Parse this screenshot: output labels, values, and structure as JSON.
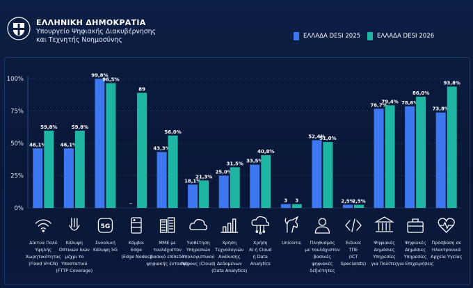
{
  "header": {
    "country": "ΕΛΛΗΝΙΚΗ ΔΗΜΟΚΡΑΤΙΑ",
    "ministry_line1": "Υπουργείο Ψηφιακής Διακυβέρνησης",
    "ministry_line2": "και Τεχνητής Νοημοσύνης"
  },
  "legend": [
    {
      "label": "ΕΛΛΑΔΑ DESI 2025",
      "color": "#3e78f0"
    },
    {
      "label": "ΕΛΛΑΔΑ DESI 2026",
      "color": "#1fb5a3"
    }
  ],
  "chart_data": {
    "type": "bar",
    "ylim": [
      0,
      100
    ],
    "y_ticks": [
      "0%",
      "25%",
      "50%",
      "75%",
      "100%"
    ],
    "grid": true,
    "legend_position": "top-right",
    "categories": [
      {
        "lines": [
          "Δίκτυα Πολύ",
          "Υψηλής",
          "Χωρητικότητας",
          "(Fixed VHCN)"
        ],
        "icon": "wifi-icon"
      },
      {
        "lines": [
          "Κάλυψη",
          "Οπτικών Ινών",
          "μέχρι το",
          "Υποστατικό",
          "(FTTP Coverage)"
        ],
        "icon": "fiber-icon"
      },
      {
        "lines": [
          "Συνολική",
          "Κάλυψη 5G"
        ],
        "icon": "5g-icon"
      },
      {
        "lines": [
          "Κόμβοι",
          "Edge",
          "(Edge Nodes)"
        ],
        "icon": "server-icon"
      },
      {
        "lines": [
          "ΜΜΕ με",
          "τουλάχιστον",
          "βασικό επίπεδο",
          "ψηφιακής έντασης"
        ],
        "icon": "buildings-icon"
      },
      {
        "lines": [
          "Υιοθέτηση",
          "Υπηρεσιών",
          "Υπολογιστικού",
          "Νέφους (Cloud)"
        ],
        "icon": "cloud-icon"
      },
      {
        "lines": [
          "Χρήση",
          "Τεχνολογιών",
          "Ανάλυσης",
          "Δεδομένων",
          "(Data Analytics)"
        ],
        "icon": "bar-chart-icon"
      },
      {
        "lines": [
          "Χρήση",
          "AI ή Cloud",
          "ή Data",
          "Analytics"
        ],
        "icon": "ai-cloud-icon"
      },
      {
        "lines": [
          "Unicorns"
        ],
        "icon": "unicorn-icon"
      },
      {
        "lines": [
          "Πληθυσμός",
          "με τουλάχιστον",
          "βασικές",
          "ψηφιακές",
          "δεξιότητες"
        ],
        "icon": "person-icon"
      },
      {
        "lines": [
          "Ειδικοί",
          "ΤΠΕ",
          "(ICT",
          "Specialists)"
        ],
        "icon": "code-icon"
      },
      {
        "lines": [
          "Ψηφιακές",
          "Δημόσιες",
          "Υπηρεσίες",
          "για Πολίτες"
        ],
        "icon": "government-icon"
      },
      {
        "lines": [
          "Ψηφιακές",
          "Δημόσιες",
          "Υπηρεσίες",
          "για Επιχειρήσεις"
        ],
        "icon": "briefcase-icon"
      },
      {
        "lines": [
          "Πρόσβαση σε",
          "Ηλεκτρονικά",
          "Αρχεία Υγείας"
        ],
        "icon": "health-icon"
      }
    ],
    "series": [
      {
        "name": "ΕΛΛΑΔΑ DESI 2025",
        "values": [
          46.1,
          46.1,
          99.8,
          null,
          43.3,
          18.1,
          25.0,
          33.5,
          3,
          52.4,
          2.5,
          76.7,
          78.6,
          73.8
        ],
        "labels": [
          "46,1%",
          "46,1%",
          "99,8%",
          "–",
          "43,3%",
          "18,1%",
          "25,0%",
          "33,5%",
          "3",
          "52,4%",
          "2,5%",
          "76,7%",
          "78,6%",
          "73,8%"
        ]
      },
      {
        "name": "ΕΛΛΑΔΑ DESI 2026",
        "values": [
          59.8,
          59.8,
          96.5,
          89,
          56.0,
          21.3,
          31.5,
          40.8,
          3,
          51.0,
          2.5,
          79.4,
          86.0,
          93.8
        ],
        "labels": [
          "59,8%",
          "59,8%",
          "96,5%",
          "89",
          "56,0%",
          "21,3%",
          "31,5%",
          "40,8%",
          "3",
          "51,0%",
          "2,5%",
          "79,4%",
          "86,0%",
          "93,8%"
        ]
      }
    ]
  }
}
